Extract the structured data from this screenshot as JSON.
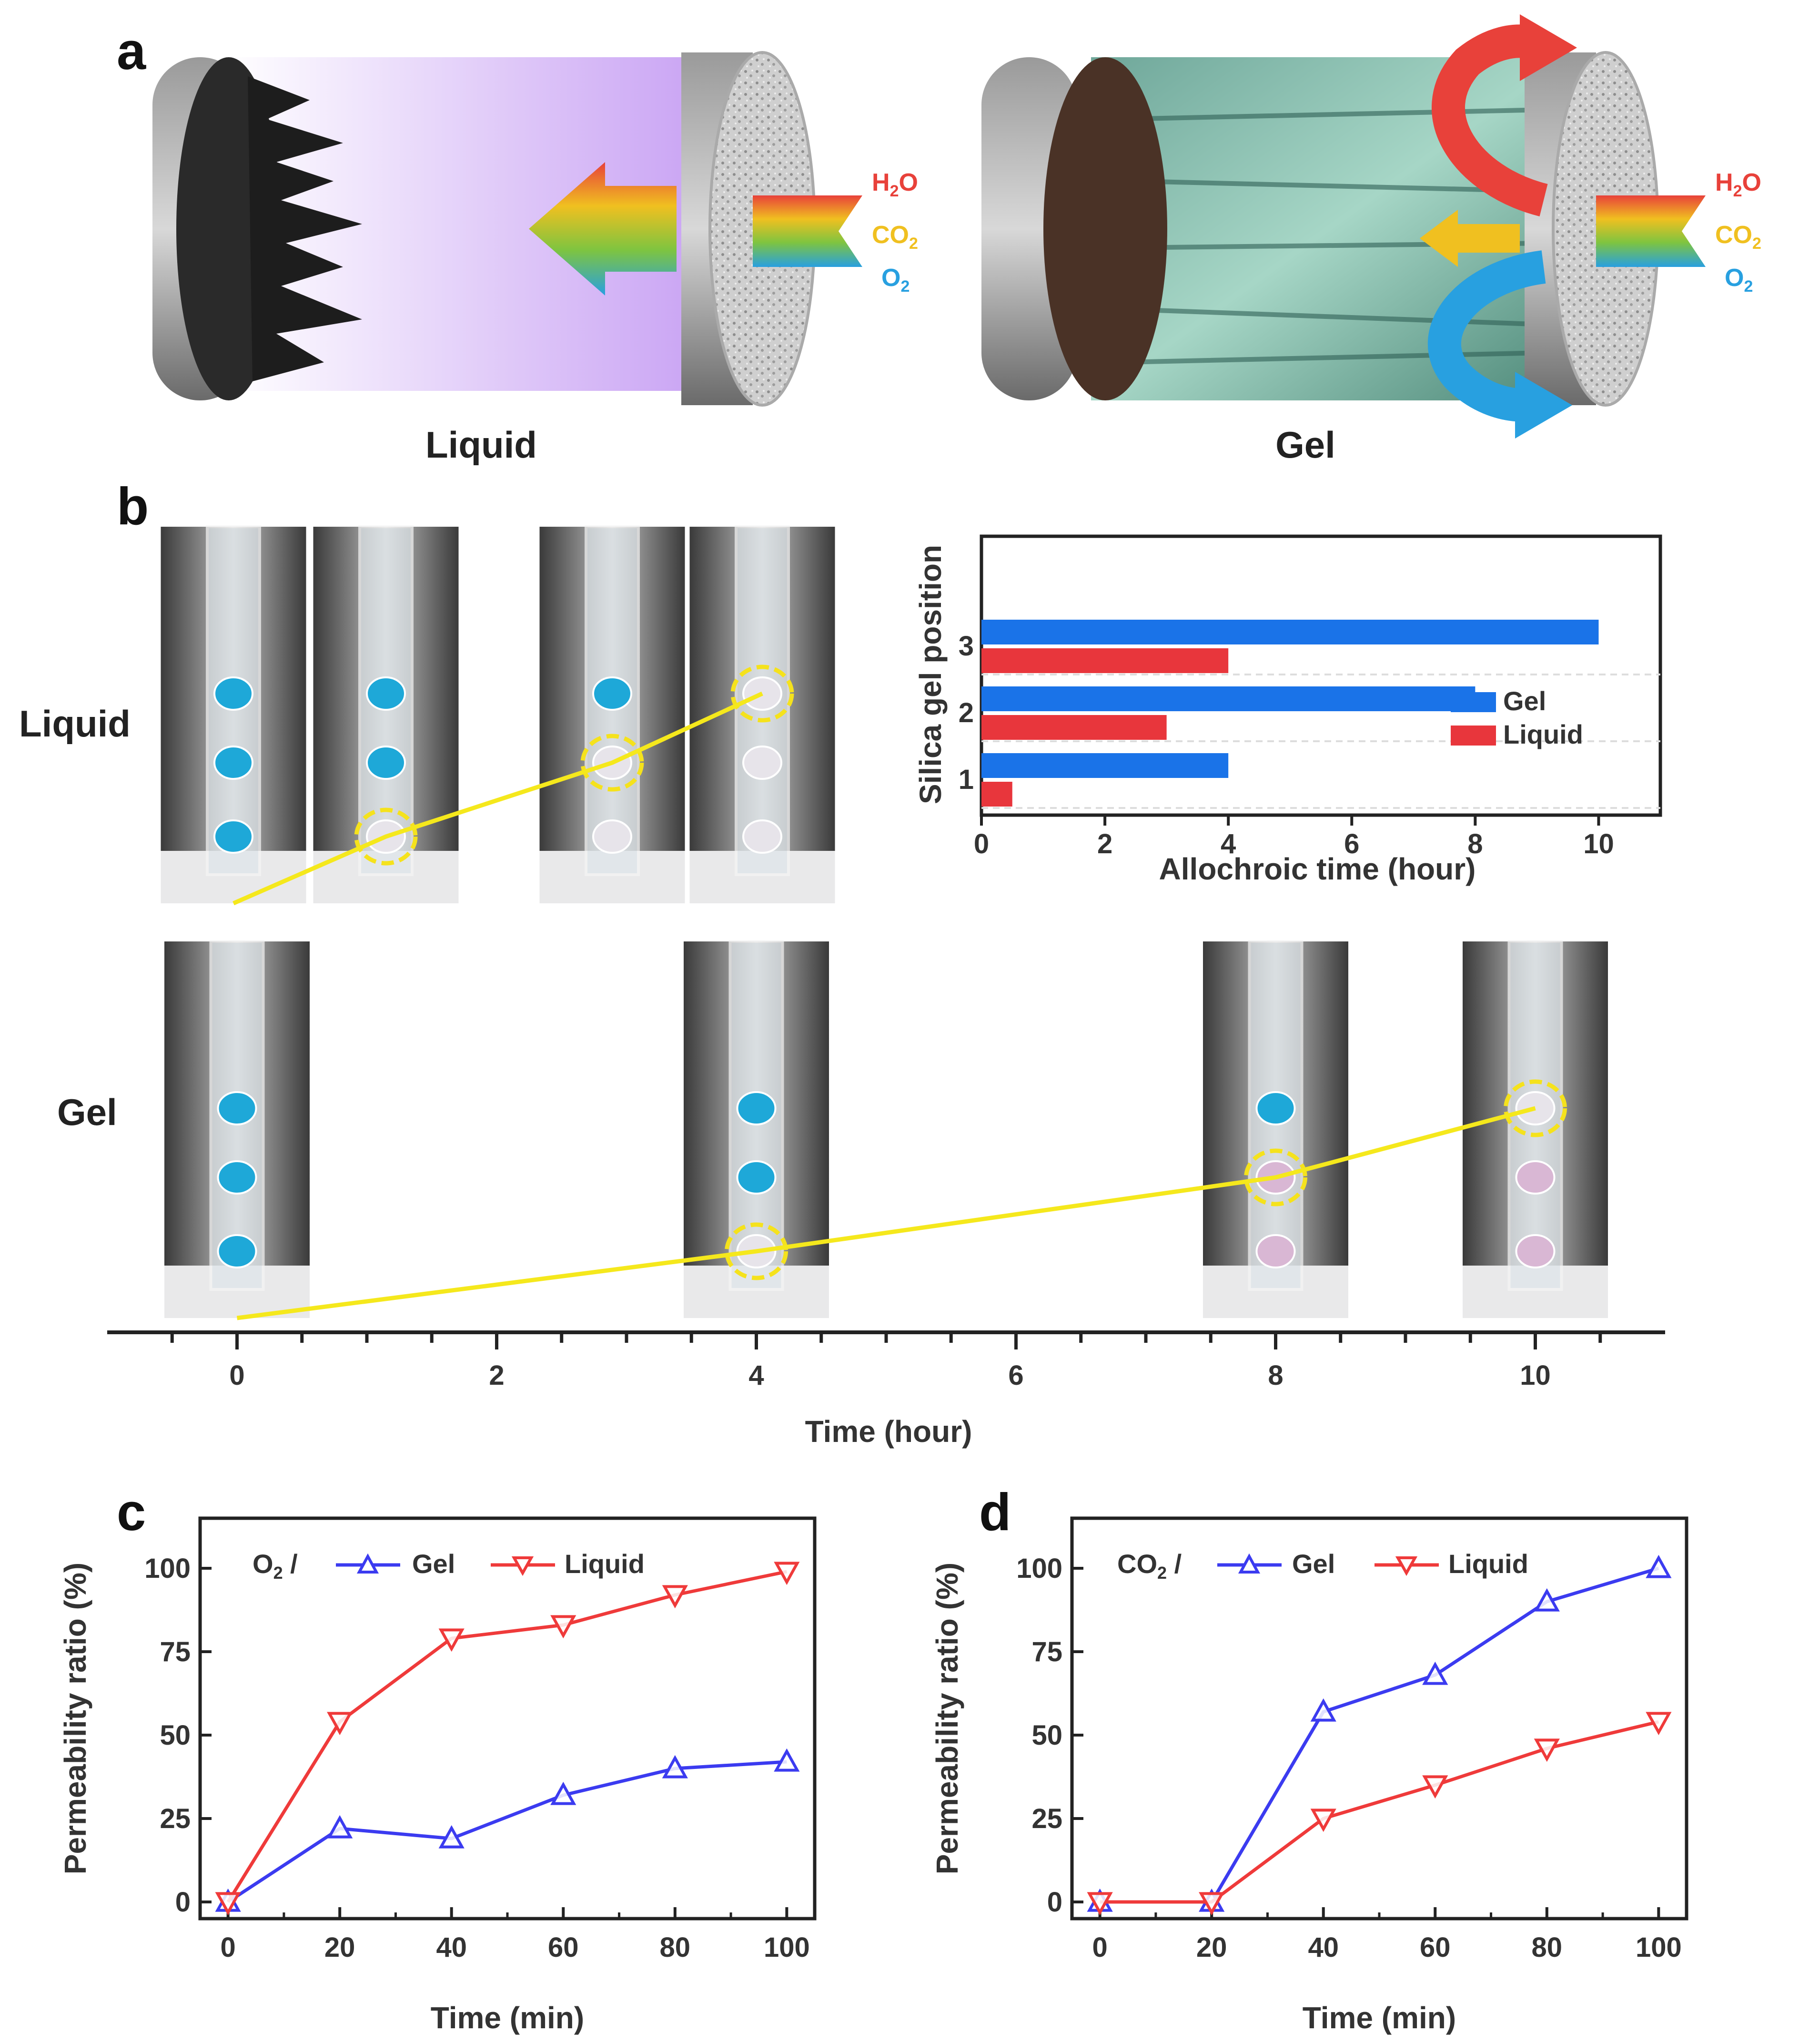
{
  "panels": {
    "a": {
      "label": "a",
      "left_caption": "Liquid",
      "right_caption": "Gel",
      "gases": [
        {
          "formula": "H",
          "sub": "2",
          "tail": "O",
          "color": "#e8413a"
        },
        {
          "formula": "CO",
          "sub": "2",
          "tail": "",
          "color": "#f0c020"
        },
        {
          "formula": "O",
          "sub": "2",
          "tail": "",
          "color": "#28a0e0"
        }
      ]
    },
    "b": {
      "label": "b",
      "row_liquid": "Liquid",
      "row_gel": "Gel",
      "timeline": {
        "xlabel": "Time (hour)",
        "ticks": [
          "0",
          "2",
          "4",
          "6",
          "8",
          "10"
        ],
        "min": -1,
        "max": 11,
        "liquid_photo_times": [
          0,
          1.2,
          2.9,
          4
        ],
        "gel_photo_times": [
          0,
          4,
          8,
          10
        ]
      }
    },
    "c": {
      "label": "c",
      "gas_prefix": "O",
      "gas_sub": "2"
    },
    "d": {
      "label": "d",
      "gas_prefix": "CO",
      "gas_sub": "2"
    }
  },
  "chart_data": [
    {
      "id": "b-inset",
      "type": "bar",
      "orientation": "horizontal",
      "title": "",
      "xlabel": "Allochroic time (hour)",
      "ylabel": "Silica gel position",
      "categories": [
        "1",
        "2",
        "3"
      ],
      "xlim": [
        0,
        11
      ],
      "xticks": [
        "0",
        "2",
        "4",
        "6",
        "8",
        "10"
      ],
      "series": [
        {
          "name": "Gel",
          "color": "#1a73e8",
          "values": [
            4,
            8,
            10
          ]
        },
        {
          "name": "Liquid",
          "color": "#e8363c",
          "values": [
            0.5,
            3,
            4
          ]
        }
      ],
      "legend": "right"
    },
    {
      "id": "c",
      "type": "line",
      "title": "",
      "xlabel": "Time (min)",
      "ylabel": "Permeability ratio (%)",
      "x": [
        0,
        20,
        40,
        60,
        80,
        100
      ],
      "xlim": [
        -5,
        105
      ],
      "ylim": [
        -5,
        115
      ],
      "xticks": [
        "0",
        "20",
        "40",
        "60",
        "80",
        "100"
      ],
      "yticks": [
        "0",
        "25",
        "50",
        "75",
        "100"
      ],
      "series": [
        {
          "name": "Gel",
          "color": "#3b3bf0",
          "marker": "triangle-up",
          "values": [
            0,
            22,
            19,
            32,
            40,
            42
          ]
        },
        {
          "name": "Liquid",
          "color": "#ef3a3a",
          "marker": "triangle-down",
          "values": [
            0,
            54,
            79,
            83,
            92,
            99
          ]
        }
      ],
      "legend": "top-left"
    },
    {
      "id": "d",
      "type": "line",
      "title": "",
      "xlabel": "Time (min)",
      "ylabel": "Permeability ratio (%)",
      "x": [
        0,
        20,
        40,
        60,
        80,
        100
      ],
      "xlim": [
        -5,
        105
      ],
      "ylim": [
        -5,
        115
      ],
      "xticks": [
        "0",
        "20",
        "40",
        "60",
        "80",
        "100"
      ],
      "yticks": [
        "0",
        "25",
        "50",
        "75",
        "100"
      ],
      "series": [
        {
          "name": "Gel",
          "color": "#3b3bf0",
          "marker": "triangle-up",
          "values": [
            0,
            0,
            57,
            68,
            90,
            100
          ]
        },
        {
          "name": "Liquid",
          "color": "#ef3a3a",
          "marker": "triangle-down",
          "values": [
            0,
            0,
            25,
            35,
            46,
            54
          ]
        }
      ],
      "legend": "top-left"
    }
  ]
}
